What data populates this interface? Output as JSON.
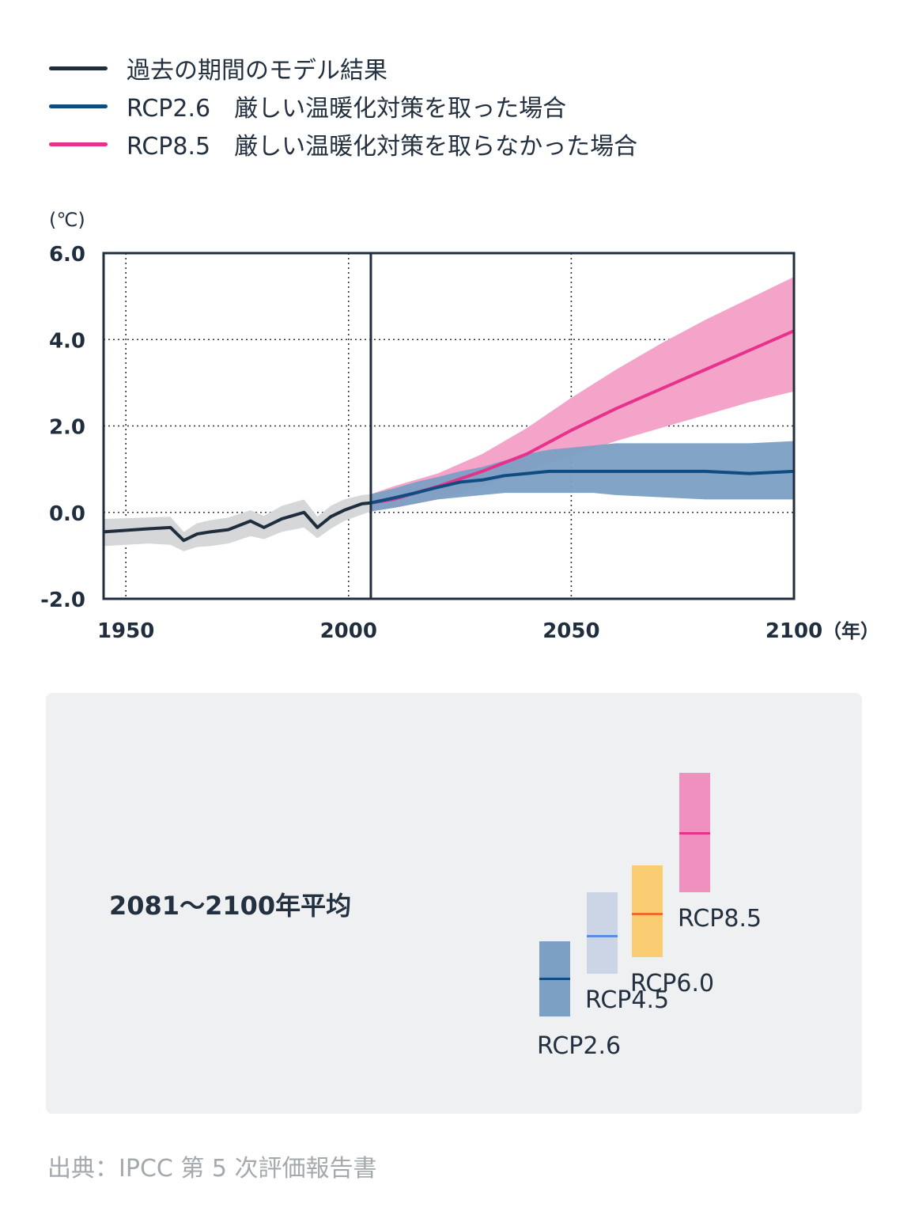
{
  "legend": [
    {
      "label": "過去の期間のモデル結果",
      "color": "#1f2d3d"
    },
    {
      "label": "RCP2.6　厳しい温暖化対策を取った場合",
      "color": "#0f4c81"
    },
    {
      "label": "RCP8.5　厳しい温暖化対策を取らなかった場合",
      "color": "#e6328a"
    }
  ],
  "chart_data": {
    "type": "line",
    "ylabel": "(℃)",
    "xlabel": "（年）",
    "ylim": [
      -2.0,
      6.0
    ],
    "xlim": [
      1945,
      2100
    ],
    "yticks": [
      "6.0",
      "4.0",
      "2.0",
      "0.0",
      "-2.0"
    ],
    "ytick_values": [
      6,
      4,
      2,
      0,
      -2
    ],
    "xticks": [
      "1950",
      "2000",
      "2050",
      "2100"
    ],
    "xtick_values": [
      1950,
      2000,
      2050,
      2100
    ],
    "divider_year": 2005,
    "series": [
      {
        "name": "過去の期間のモデル結果",
        "color": "#1f2d3d",
        "band_color": "#d5d7d9",
        "x": [
          1945,
          1955,
          1960,
          1963,
          1966,
          1969,
          1973,
          1978,
          1981,
          1985,
          1990,
          1993,
          1996,
          1999,
          2003,
          2005
        ],
        "y": [
          -0.45,
          -0.38,
          -0.35,
          -0.65,
          -0.5,
          -0.45,
          -0.4,
          -0.2,
          -0.35,
          -0.15,
          0.0,
          -0.35,
          -0.1,
          0.05,
          0.2,
          0.22
        ],
        "lower": [
          -0.78,
          -0.72,
          -0.75,
          -0.9,
          -0.8,
          -0.78,
          -0.72,
          -0.55,
          -0.62,
          -0.45,
          -0.35,
          -0.6,
          -0.38,
          -0.2,
          -0.05,
          0.02
        ],
        "upper": [
          -0.15,
          -0.12,
          -0.1,
          -0.45,
          -0.25,
          -0.18,
          -0.12,
          0.05,
          -0.08,
          0.15,
          0.3,
          -0.1,
          0.15,
          0.3,
          0.4,
          0.42
        ]
      },
      {
        "name": "RCP8.5",
        "color": "#e6328a",
        "band_color": "#f4a3c9",
        "x": [
          2005,
          2010,
          2020,
          2030,
          2040,
          2050,
          2060,
          2070,
          2080,
          2090,
          2100
        ],
        "y": [
          0.22,
          0.3,
          0.6,
          0.95,
          1.35,
          1.9,
          2.4,
          2.85,
          3.3,
          3.75,
          4.2
        ],
        "lower": [
          0.05,
          0.1,
          0.3,
          0.6,
          0.95,
          1.3,
          1.65,
          1.95,
          2.25,
          2.55,
          2.8
        ],
        "upper": [
          0.42,
          0.6,
          0.9,
          1.35,
          1.95,
          2.65,
          3.3,
          3.9,
          4.45,
          4.95,
          5.45
        ]
      },
      {
        "name": "RCP2.6",
        "color": "#0f4c81",
        "band_color": "#7ba0c4",
        "x": [
          2005,
          2010,
          2015,
          2020,
          2025,
          2030,
          2035,
          2040,
          2045,
          2050,
          2055,
          2060,
          2070,
          2080,
          2090,
          2100
        ],
        "y": [
          0.22,
          0.33,
          0.45,
          0.58,
          0.7,
          0.75,
          0.85,
          0.9,
          0.95,
          0.95,
          0.95,
          0.95,
          0.95,
          0.95,
          0.9,
          0.95
        ],
        "lower": [
          0.02,
          0.1,
          0.2,
          0.3,
          0.35,
          0.4,
          0.45,
          0.45,
          0.45,
          0.45,
          0.45,
          0.4,
          0.35,
          0.3,
          0.3,
          0.3
        ],
        "upper": [
          0.42,
          0.55,
          0.7,
          0.82,
          0.95,
          1.05,
          1.2,
          1.35,
          1.45,
          1.5,
          1.55,
          1.6,
          1.6,
          1.6,
          1.6,
          1.65
        ]
      }
    ]
  },
  "average_panel": {
    "title": "2081〜2100年平均",
    "scenarios": [
      {
        "label": "RCP2.6",
        "fill": "#7ba0c4",
        "mark": "#0f4c81",
        "low": 0.3,
        "mean": 1.0,
        "high": 1.7
      },
      {
        "label": "RCP4.5",
        "fill": "#ccd5e6",
        "mark": "#5a8ee6",
        "low": 1.1,
        "mean": 1.8,
        "high": 2.6
      },
      {
        "label": "RCP6.0",
        "fill": "#fbcd72",
        "mark": "#f06a2c",
        "low": 1.4,
        "mean": 2.2,
        "high": 3.1
      },
      {
        "label": "RCP8.5",
        "fill": "#f090bf",
        "mark": "#e6328a",
        "low": 2.6,
        "mean": 3.7,
        "high": 4.8
      }
    ]
  },
  "source": "出典：IPCC 第 5 次評価報告書"
}
